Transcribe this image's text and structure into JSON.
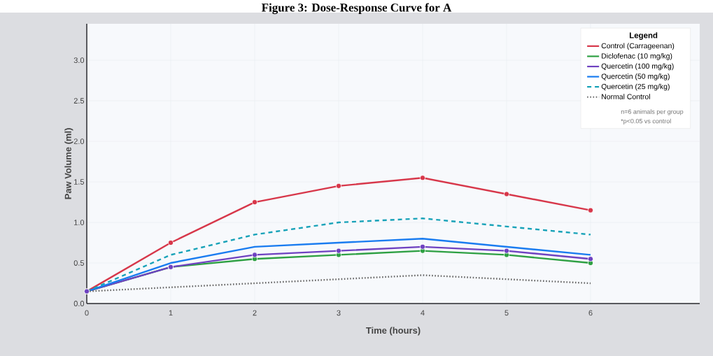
{
  "chart_data": {
    "type": "line",
    "title": "Figure 3: Dose-Response Curve for A",
    "xlabel": "Time (hours)",
    "ylabel": "Paw Volume (ml)",
    "legend_title": "Legend",
    "x": [
      0,
      1,
      2,
      3,
      4,
      5,
      6
    ],
    "series": [
      {
        "name": "Control (Carrageenan)",
        "color": "#d7374a",
        "marker": "circle",
        "line_style": "solid",
        "values": [
          0.15,
          0.75,
          1.25,
          1.45,
          1.55,
          1.35,
          1.15
        ]
      },
      {
        "name": "Diclofenac (10 mg/kg)",
        "color": "#2ea043",
        "marker": "circle",
        "line_style": "solid",
        "values": [
          0.15,
          0.45,
          0.55,
          0.6,
          0.65,
          0.6,
          0.5
        ]
      },
      {
        "name": "Quercetin (100 mg/kg)",
        "color": "#6f42c1",
        "marker": "circle",
        "line_style": "solid",
        "values": [
          0.15,
          0.45,
          0.6,
          0.65,
          0.7,
          0.65,
          0.55
        ]
      },
      {
        "name": "Quercetin (50 mg/kg)",
        "color": "#1a7cf0",
        "marker": "none",
        "line_style": "solid",
        "values": [
          0.15,
          0.5,
          0.7,
          0.75,
          0.8,
          0.7,
          0.6
        ]
      },
      {
        "name": "Quercetin (25 mg/kg)",
        "color": "#17a2b8",
        "marker": "none",
        "line_style": "dashed",
        "values": [
          0.15,
          0.6,
          0.85,
          1.0,
          1.05,
          0.95,
          0.85
        ]
      },
      {
        "name": "Normal Control",
        "color": "#666666",
        "marker": "none",
        "line_style": "dotted",
        "values": [
          0.15,
          0.2,
          0.25,
          0.3,
          0.35,
          0.3,
          0.25
        ]
      }
    ],
    "xlim": [
      0,
      7.3
    ],
    "ylim": [
      0,
      3.45
    ],
    "xticks": [
      0,
      1,
      2,
      3,
      4,
      5,
      6
    ],
    "yticks": [
      {
        "value": 0,
        "label": "0.0"
      },
      {
        "value": 0.5,
        "label": "0.5"
      },
      {
        "value": 1,
        "label": "1.0"
      },
      {
        "value": 1.5,
        "label": "1.5"
      },
      {
        "value": 2,
        "label": "2.0"
      },
      {
        "value": 2.5,
        "label": "2.5"
      },
      {
        "value": 3,
        "label": "3.0"
      }
    ],
    "grid": true,
    "legend": "top right",
    "annotations": [
      "n=6 animals per group",
      "*p<0.05 vs control"
    ]
  }
}
